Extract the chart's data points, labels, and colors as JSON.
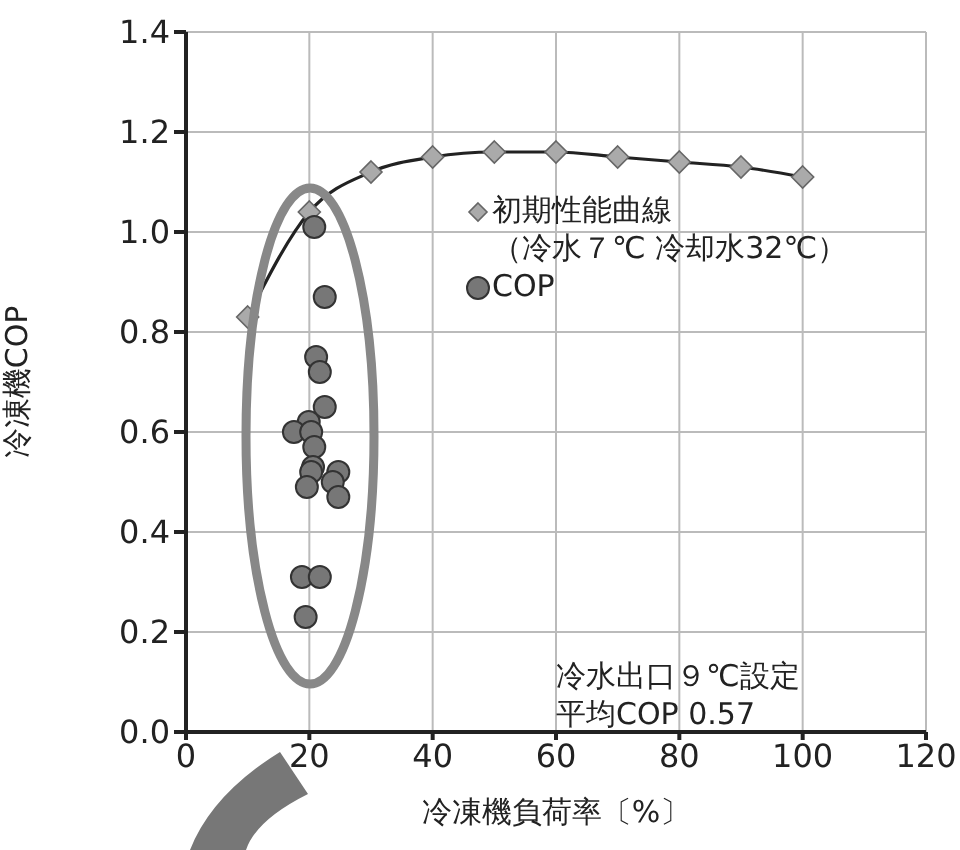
{
  "chart_data": {
    "type": "line",
    "xlabel": "冷凍機負荷率〔%〕",
    "ylabel": "冷凍機COP",
    "xlim": [
      0,
      120
    ],
    "xticks": [
      0,
      20,
      40,
      60,
      80,
      100,
      120
    ],
    "ylim": [
      0,
      1.4
    ],
    "yticks": [
      {
        "value": 0,
        "label": "0.0"
      },
      {
        "value": 0.2,
        "label": "0.2"
      },
      {
        "value": 0.4,
        "label": "0.4"
      },
      {
        "value": 0.6,
        "label": "0.6"
      },
      {
        "value": 0.8,
        "label": "0.8"
      },
      {
        "value": 1,
        "label": "1.0"
      },
      {
        "value": 1.2,
        "label": "1.2"
      },
      {
        "value": 1.4,
        "label": "1.4"
      }
    ],
    "grid": true,
    "legend": "top right",
    "series": [
      {
        "name": "初期性能曲線（冷水７℃ 冷却水32℃）",
        "marker": "diamond",
        "color": "#222222",
        "x": [
          10,
          20,
          30,
          40,
          50,
          60,
          70,
          80,
          90,
          100
        ],
        "values": [
          0.83,
          1.04,
          1.12,
          1.15,
          1.16,
          1.16,
          1.15,
          1.14,
          1.13,
          1.11
        ]
      },
      {
        "name": "COP",
        "type": "scatter",
        "marker": "circle",
        "color": "#777777",
        "x": [
          20.8,
          22.5,
          21.1,
          21.7,
          22.5,
          19.9,
          17.5,
          20.3,
          20.8,
          20.6,
          24.7,
          20.3,
          23.8,
          19.6,
          24.7,
          18.8,
          21.7,
          19.4
        ],
        "values": [
          1.01,
          0.87,
          0.75,
          0.72,
          0.65,
          0.62,
          0.6,
          0.6,
          0.57,
          0.53,
          0.52,
          0.52,
          0.5,
          0.49,
          0.47,
          0.31,
          0.31,
          0.23
        ]
      }
    ],
    "annotations": [
      "冷水出口９℃設定",
      "平均COP 0.57"
    ]
  }
}
